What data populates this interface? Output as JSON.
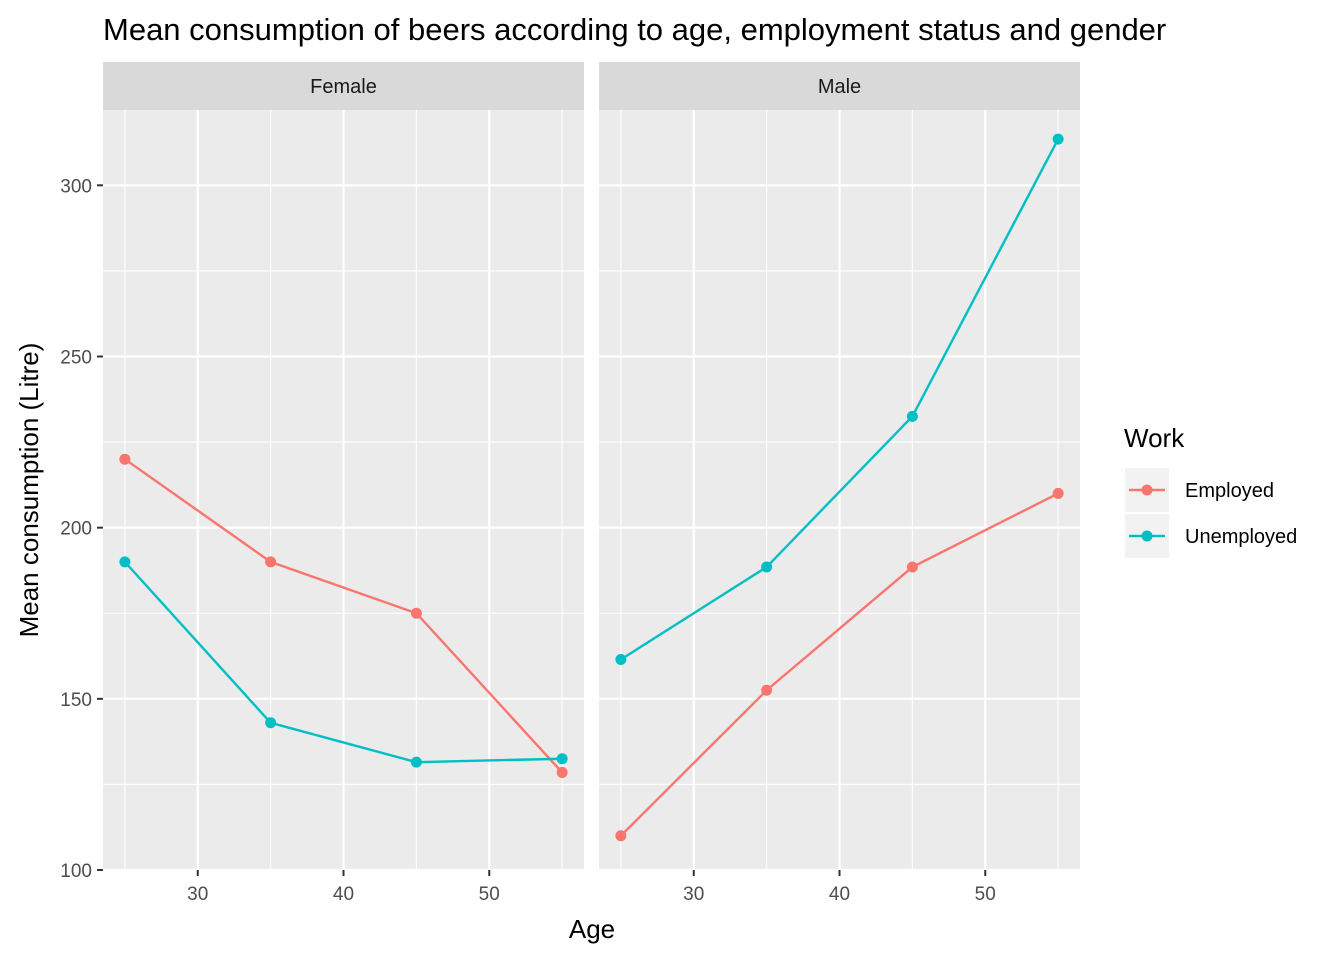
{
  "chart_data": {
    "type": "line",
    "title": "Mean consumption of beers according to age, employment status and gender",
    "xlabel": "Age",
    "ylabel": "Mean consumption (Litre)",
    "xlim": [
      23.5,
      56.5
    ],
    "ylim": [
      100,
      322
    ],
    "x_ticks": [
      30,
      40,
      50
    ],
    "x_minor": [
      25,
      35,
      45,
      55
    ],
    "y_ticks": [
      100,
      150,
      200,
      250,
      300
    ],
    "y_minor": [
      125,
      175,
      225,
      275
    ],
    "grid": true,
    "legend": {
      "title": "Work",
      "position": "right",
      "entries": [
        {
          "name": "Employed",
          "color": "#F8766D"
        },
        {
          "name": "Unemployed",
          "color": "#00BFC4"
        }
      ]
    },
    "facets": [
      {
        "label": "Female",
        "x": [
          25,
          35,
          45,
          55
        ],
        "series": [
          {
            "name": "Employed",
            "color": "#F8766D",
            "values": [
              220,
              190,
              175,
              128.5
            ]
          },
          {
            "name": "Unemployed",
            "color": "#00BFC4",
            "values": [
              190,
              143,
              131.5,
              132.5
            ]
          }
        ]
      },
      {
        "label": "Male",
        "x": [
          25,
          35,
          45,
          55
        ],
        "series": [
          {
            "name": "Employed",
            "color": "#F8766D",
            "values": [
              110,
              152.5,
              188.5,
              210
            ]
          },
          {
            "name": "Unemployed",
            "color": "#00BFC4",
            "values": [
              161.5,
              188.5,
              232.5,
              313.5
            ]
          }
        ]
      }
    ]
  }
}
